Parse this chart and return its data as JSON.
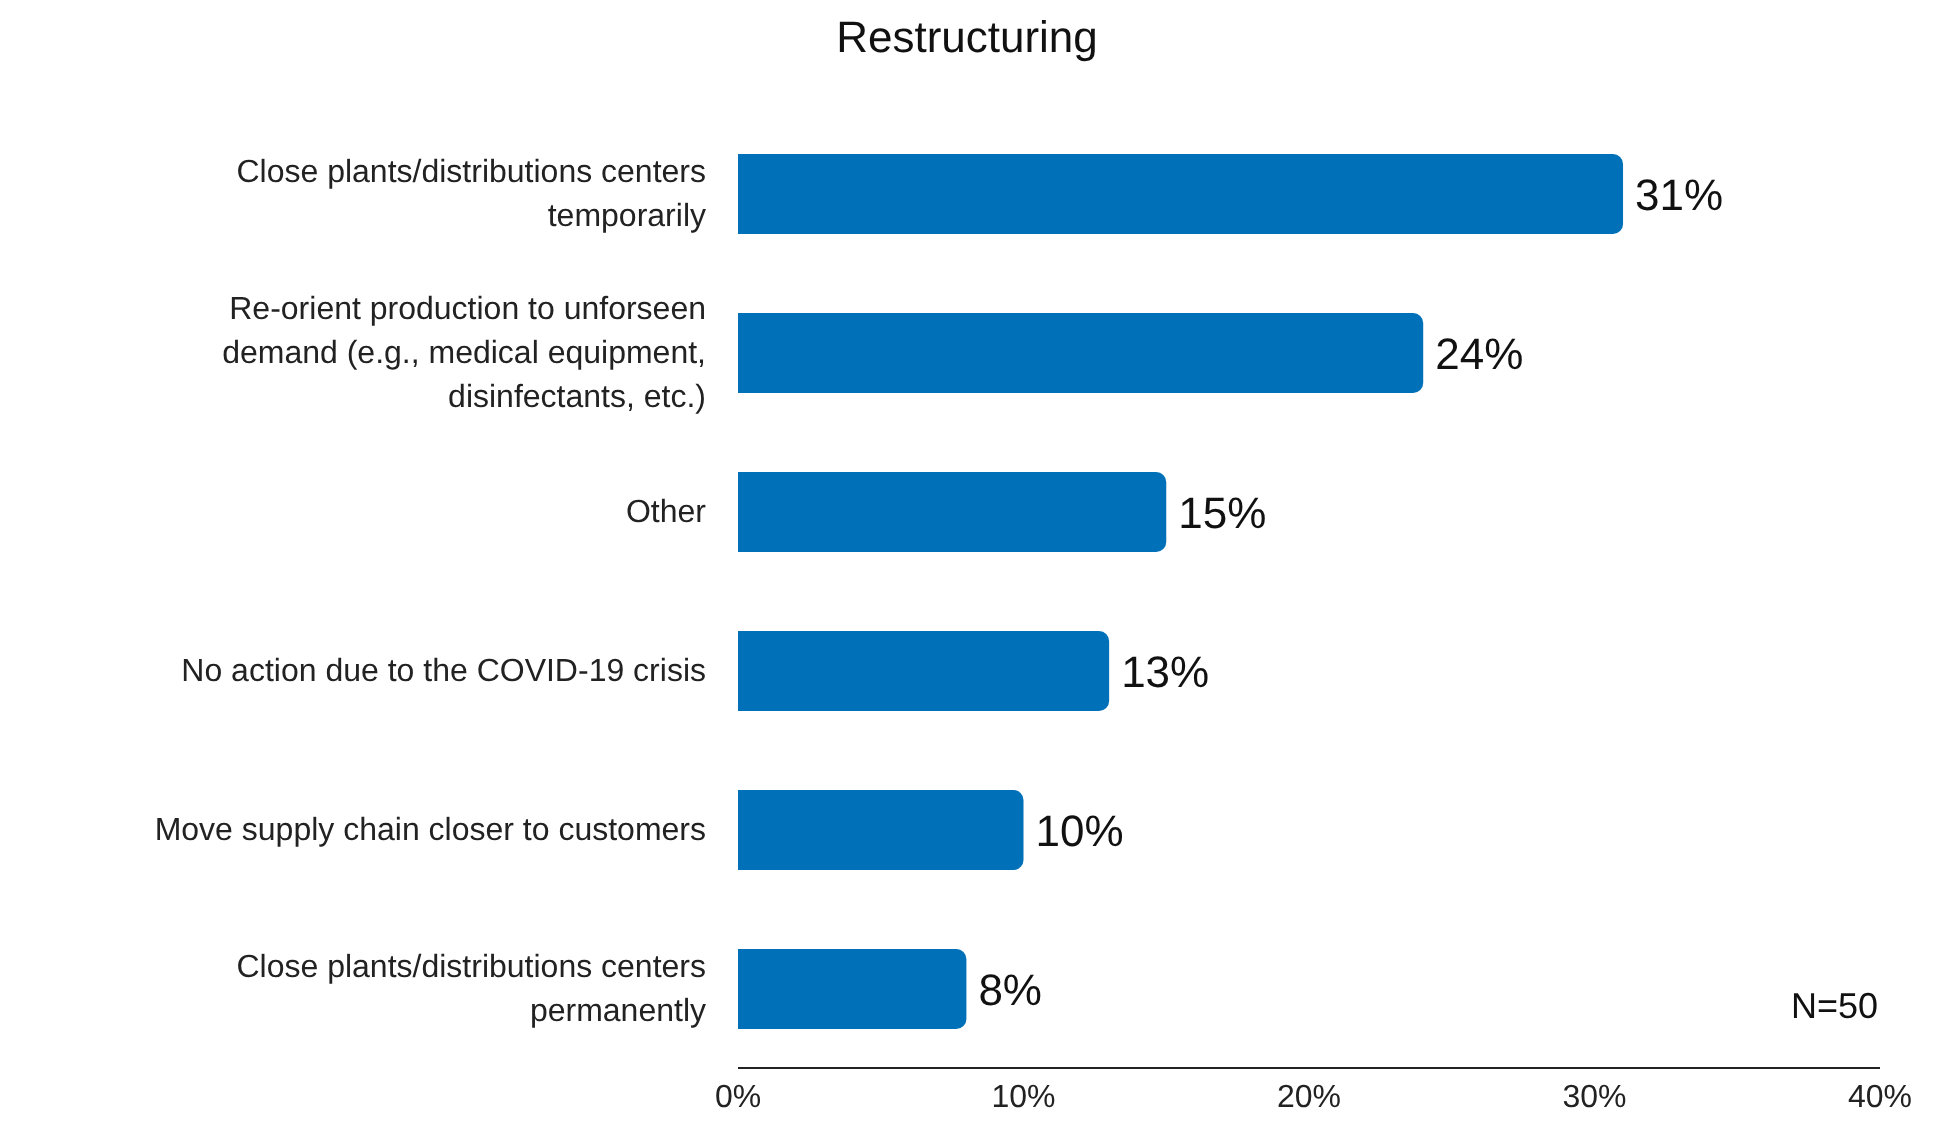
{
  "chart_data": {
    "type": "bar",
    "orientation": "horizontal",
    "title": "Restructuring",
    "categories": [
      "Close plants/distributions centers temporarily",
      "Re-orient production to unforseen demand (e.g., medical equipment, disinfectants, etc.)",
      "Other",
      "No action due to the COVID-19 crisis",
      "Move supply chain closer to customers",
      "Close plants/distributions centers permanently"
    ],
    "values": [
      31,
      24,
      15,
      13,
      10,
      8
    ],
    "value_labels": [
      "31%",
      "24%",
      "15%",
      "13%",
      "10%",
      "8%"
    ],
    "color": "#0071b8",
    "xlim": [
      0,
      40
    ],
    "xticks": [
      {
        "value": 0,
        "label": "0%"
      },
      {
        "value": 10,
        "label": "10%"
      },
      {
        "value": 20,
        "label": "20%"
      },
      {
        "value": 30,
        "label": "30%"
      },
      {
        "value": 40,
        "label": "40%"
      }
    ],
    "annotations": [
      "N=50"
    ],
    "grid": false
  }
}
